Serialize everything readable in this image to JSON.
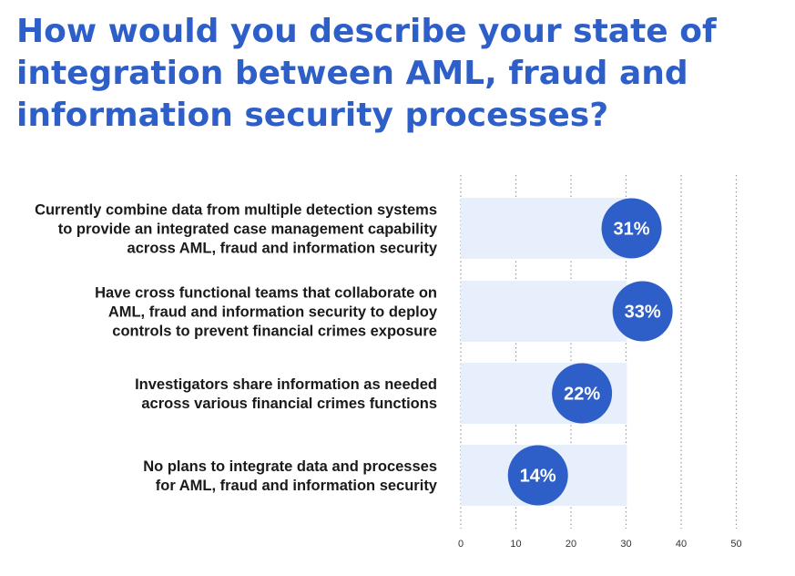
{
  "title_lines": [
    "How would you describe your state of",
    "integration between AML, fraud and",
    "information security processes?"
  ],
  "colors": {
    "title": "#2e5fc8",
    "bar_bg": "#e6effb",
    "bubble": "#2e5fc8",
    "grid": "#9a9a9a"
  },
  "chart_data": {
    "type": "bar",
    "orientation": "horizontal",
    "title": "How would you describe your state of integration between AML, fraud and information security processes?",
    "categories": [
      [
        "Currently combine data from multiple detection systems",
        "to provide an integrated case management capability",
        "across AML, fraud and information security"
      ],
      [
        "Have cross functional teams that collaborate on",
        "AML, fraud and information security to deploy",
        "controls to prevent financial crimes exposure"
      ],
      [
        "Investigators share information as needed",
        "across various financial crimes functions"
      ],
      [
        "No plans to integrate data and processes",
        "for AML, fraud and information security"
      ]
    ],
    "values": [
      31,
      33,
      22,
      14
    ],
    "data_labels": [
      "31%",
      "33%",
      "22%",
      "14%"
    ],
    "xlim": [
      0,
      50
    ],
    "x_ticks": [
      "0",
      "10",
      "20",
      "30",
      "40",
      "50"
    ],
    "grid": "vertical dotted",
    "legend": "none"
  }
}
